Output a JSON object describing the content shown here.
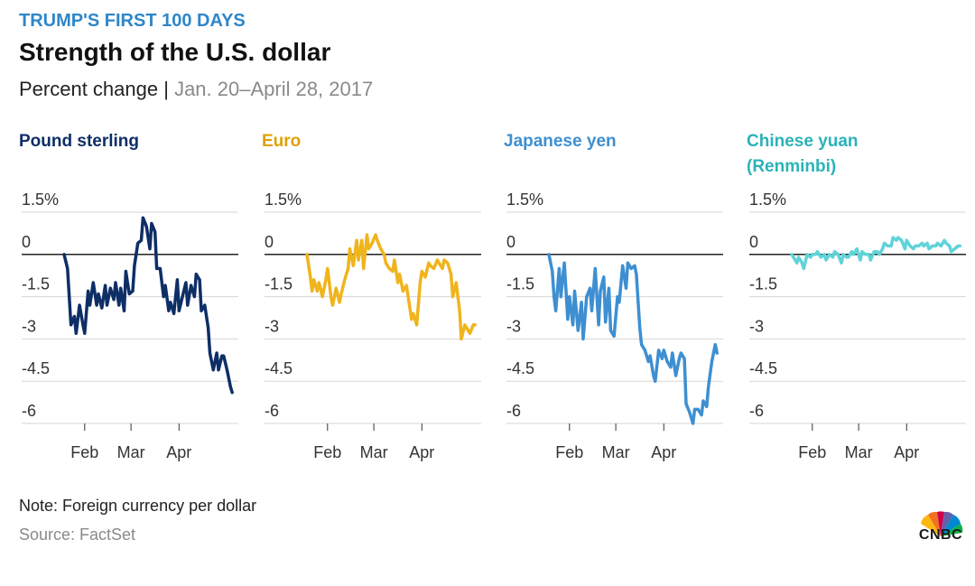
{
  "header": {
    "kicker": "TRUMP'S FIRST 100 DAYS",
    "title": "Strength of the U.S. dollar",
    "subtitle_main": "Percent change",
    "subtitle_sep": " | ",
    "subtitle_date": "Jan. 20–April 28, 2017"
  },
  "footer": {
    "note": "Note: Foreign currency per dollar",
    "source": "Source: FactSet",
    "logo_text": "CNBC"
  },
  "chart_data": [
    {
      "type": "line",
      "title": "Pound sterling",
      "color": "#0e2e66",
      "ylim": [
        -6,
        1.5
      ],
      "xlim": [
        0,
        100
      ],
      "yticks": [
        1.5,
        0,
        -1.5,
        -3,
        -4.5,
        -6
      ],
      "ytick_labels": [
        "1.5%",
        "0",
        "-1.5",
        "-3",
        "-4.5",
        "-6"
      ],
      "xticks": [
        12,
        39,
        67
      ],
      "xtick_labels": [
        "Feb",
        "Mar",
        "Apr"
      ],
      "x": [
        0,
        2,
        3,
        4,
        6,
        7,
        9,
        11,
        12,
        14,
        15,
        17,
        19,
        20,
        22,
        24,
        25,
        27,
        29,
        30,
        32,
        33,
        35,
        36,
        38,
        40,
        41,
        43,
        45,
        46,
        48,
        50,
        51,
        53,
        54,
        56,
        58,
        59,
        61,
        62,
        64,
        66,
        67,
        69,
        71,
        72,
        74,
        76,
        77,
        79,
        80,
        82,
        84,
        85,
        87,
        89,
        90,
        92,
        93,
        95,
        97,
        98
      ],
      "values": [
        0,
        -0.5,
        -1.5,
        -2.5,
        -2.2,
        -2.8,
        -1.8,
        -2.5,
        -2.8,
        -1.3,
        -1.8,
        -1.0,
        -1.8,
        -1.4,
        -1.9,
        -1.1,
        -1.8,
        -1.2,
        -1.6,
        -1.0,
        -1.8,
        -1.2,
        -2.0,
        -0.6,
        -1.4,
        -1.3,
        -0.4,
        0.4,
        0.5,
        1.3,
        1.0,
        0.2,
        1.1,
        0.8,
        -0.5,
        -0.5,
        -1.5,
        -1.1,
        -2.0,
        -1.7,
        -2.1,
        -0.9,
        -2.0,
        -1.5,
        -1.0,
        -1.8,
        -1.1,
        -1.5,
        -0.7,
        -0.9,
        -2.0,
        -1.8,
        -2.6,
        -3.5,
        -4.1,
        -3.5,
        -4.1,
        -3.6,
        -3.6,
        -4.1,
        -4.7,
        -4.9
      ]
    },
    {
      "type": "line",
      "title": "Euro",
      "color": "#f0b41c",
      "ylim": [
        -6,
        1.5
      ],
      "xlim": [
        0,
        100
      ],
      "yticks": [
        1.5,
        0,
        -1.5,
        -3,
        -4.5,
        -6
      ],
      "ytick_labels": [
        "1.5%",
        "0",
        "-1.5",
        "-3",
        "-4.5",
        "-6"
      ],
      "xticks": [
        12,
        39,
        67
      ],
      "xtick_labels": [
        "Feb",
        "Mar",
        "Apr"
      ],
      "x": [
        0,
        2,
        3,
        4,
        6,
        7,
        9,
        11,
        12,
        14,
        15,
        17,
        19,
        20,
        22,
        24,
        25,
        27,
        29,
        30,
        32,
        33,
        35,
        36,
        38,
        40,
        41,
        43,
        45,
        46,
        48,
        50,
        51,
        53,
        54,
        56,
        58,
        59,
        61,
        62,
        64,
        66,
        67,
        69,
        71,
        72,
        74,
        76,
        77,
        79,
        80,
        82,
        84,
        85,
        87,
        89,
        90,
        92,
        93,
        95,
        97,
        98
      ],
      "values": [
        0,
        -0.8,
        -1.3,
        -0.9,
        -1.3,
        -1.0,
        -1.5,
        -0.9,
        -0.5,
        -1.5,
        -1.8,
        -1.2,
        -1.7,
        -1.4,
        -0.9,
        -0.5,
        0.2,
        -0.4,
        0.5,
        -0.2,
        0.5,
        -0.5,
        0.7,
        0.2,
        0.4,
        0.7,
        0.5,
        0.2,
        0.0,
        -0.3,
        -0.5,
        -0.6,
        -0.2,
        -1.0,
        -0.7,
        -1.3,
        -1.1,
        -1.5,
        -2.3,
        -2.1,
        -2.5,
        -1.0,
        -0.6,
        -0.8,
        -0.3,
        -0.4,
        -0.5,
        -0.2,
        -0.3,
        -0.5,
        -0.2,
        -0.3,
        -0.7,
        -1.5,
        -1.0,
        -2.0,
        -3.0,
        -2.5,
        -2.6,
        -2.8,
        -2.5,
        -2.5
      ]
    },
    {
      "type": "line",
      "title": "Japanese yen",
      "color": "#3d8fd1",
      "ylim": [
        -6,
        1.5
      ],
      "xlim": [
        0,
        100
      ],
      "yticks": [
        1.5,
        0,
        -1.5,
        -3,
        -4.5,
        -6
      ],
      "ytick_labels": [
        "1.5%",
        "0",
        "-1.5",
        "-3",
        "-4.5",
        "-6"
      ],
      "xticks": [
        12,
        39,
        67
      ],
      "xtick_labels": [
        "Feb",
        "Mar",
        "Apr"
      ],
      "x": [
        0,
        2,
        3,
        4,
        6,
        7,
        9,
        11,
        12,
        14,
        15,
        17,
        19,
        20,
        22,
        24,
        25,
        27,
        29,
        30,
        32,
        33,
        35,
        36,
        38,
        40,
        41,
        43,
        45,
        46,
        48,
        50,
        51,
        53,
        54,
        56,
        58,
        59,
        61,
        62,
        64,
        66,
        67,
        69,
        71,
        72,
        74,
        76,
        77,
        79,
        80,
        82,
        84,
        85,
        87,
        89,
        90,
        92,
        93,
        95,
        97,
        98
      ],
      "values": [
        0,
        -0.6,
        -1.5,
        -2.0,
        -0.5,
        -1.5,
        -0.3,
        -2.3,
        -1.5,
        -2.5,
        -1.3,
        -2.7,
        -1.7,
        -3.0,
        -1.5,
        -1.2,
        -2.0,
        -0.5,
        -2.5,
        -1.3,
        -0.8,
        -2.4,
        -1.2,
        -2.7,
        -2.9,
        -1.5,
        -1.7,
        -0.4,
        -1.2,
        -0.3,
        -0.5,
        -0.4,
        -0.7,
        -2.6,
        -3.2,
        -3.4,
        -3.8,
        -3.6,
        -4.3,
        -4.5,
        -3.4,
        -3.7,
        -3.4,
        -3.8,
        -4.0,
        -3.5,
        -4.3,
        -3.7,
        -3.5,
        -3.7,
        -5.3,
        -5.6,
        -6.0,
        -5.5,
        -5.5,
        -5.7,
        -5.2,
        -5.4,
        -4.7,
        -3.8,
        -3.2,
        -3.5
      ]
    },
    {
      "type": "line",
      "title": "Chinese yuan",
      "title_line2": "(Renminbi)",
      "color": "#5fd3d8",
      "ylim": [
        -6,
        1.5
      ],
      "xlim": [
        0,
        100
      ],
      "yticks": [
        1.5,
        0,
        -1.5,
        -3,
        -4.5,
        -6
      ],
      "ytick_labels": [
        "1.5%",
        "0",
        "-1.5",
        "-3",
        "-4.5",
        "-6"
      ],
      "xticks": [
        12,
        39,
        67
      ],
      "xtick_labels": [
        "Feb",
        "Mar",
        "Apr"
      ],
      "x": [
        0,
        2,
        3,
        4,
        6,
        7,
        9,
        11,
        12,
        14,
        15,
        17,
        19,
        20,
        22,
        24,
        25,
        27,
        29,
        30,
        32,
        33,
        35,
        36,
        38,
        40,
        41,
        43,
        45,
        46,
        48,
        50,
        51,
        53,
        54,
        56,
        58,
        59,
        61,
        62,
        64,
        66,
        67,
        69,
        71,
        72,
        74,
        76,
        77,
        79,
        80,
        82,
        84,
        85,
        87,
        89,
        90,
        92,
        93,
        95,
        97,
        98
      ],
      "values": [
        0,
        -0.2,
        -0.3,
        -0.1,
        -0.3,
        -0.5,
        0.0,
        -0.1,
        0.0,
        0.0,
        0.1,
        -0.1,
        0.0,
        -0.2,
        0.0,
        -0.1,
        0.1,
        0.0,
        -0.3,
        0.0,
        -0.1,
        -0.1,
        0.1,
        0.0,
        0.2,
        -0.2,
        0.1,
        0.0,
        0.0,
        -0.2,
        0.1,
        0.1,
        0.0,
        0.2,
        0.4,
        0.3,
        0.3,
        0.6,
        0.5,
        0.6,
        0.5,
        0.2,
        0.5,
        0.3,
        0.2,
        0.3,
        0.3,
        0.4,
        0.3,
        0.4,
        0.2,
        0.3,
        0.3,
        0.4,
        0.3,
        0.5,
        0.4,
        0.3,
        0.1,
        0.2,
        0.3,
        0.3
      ]
    }
  ]
}
